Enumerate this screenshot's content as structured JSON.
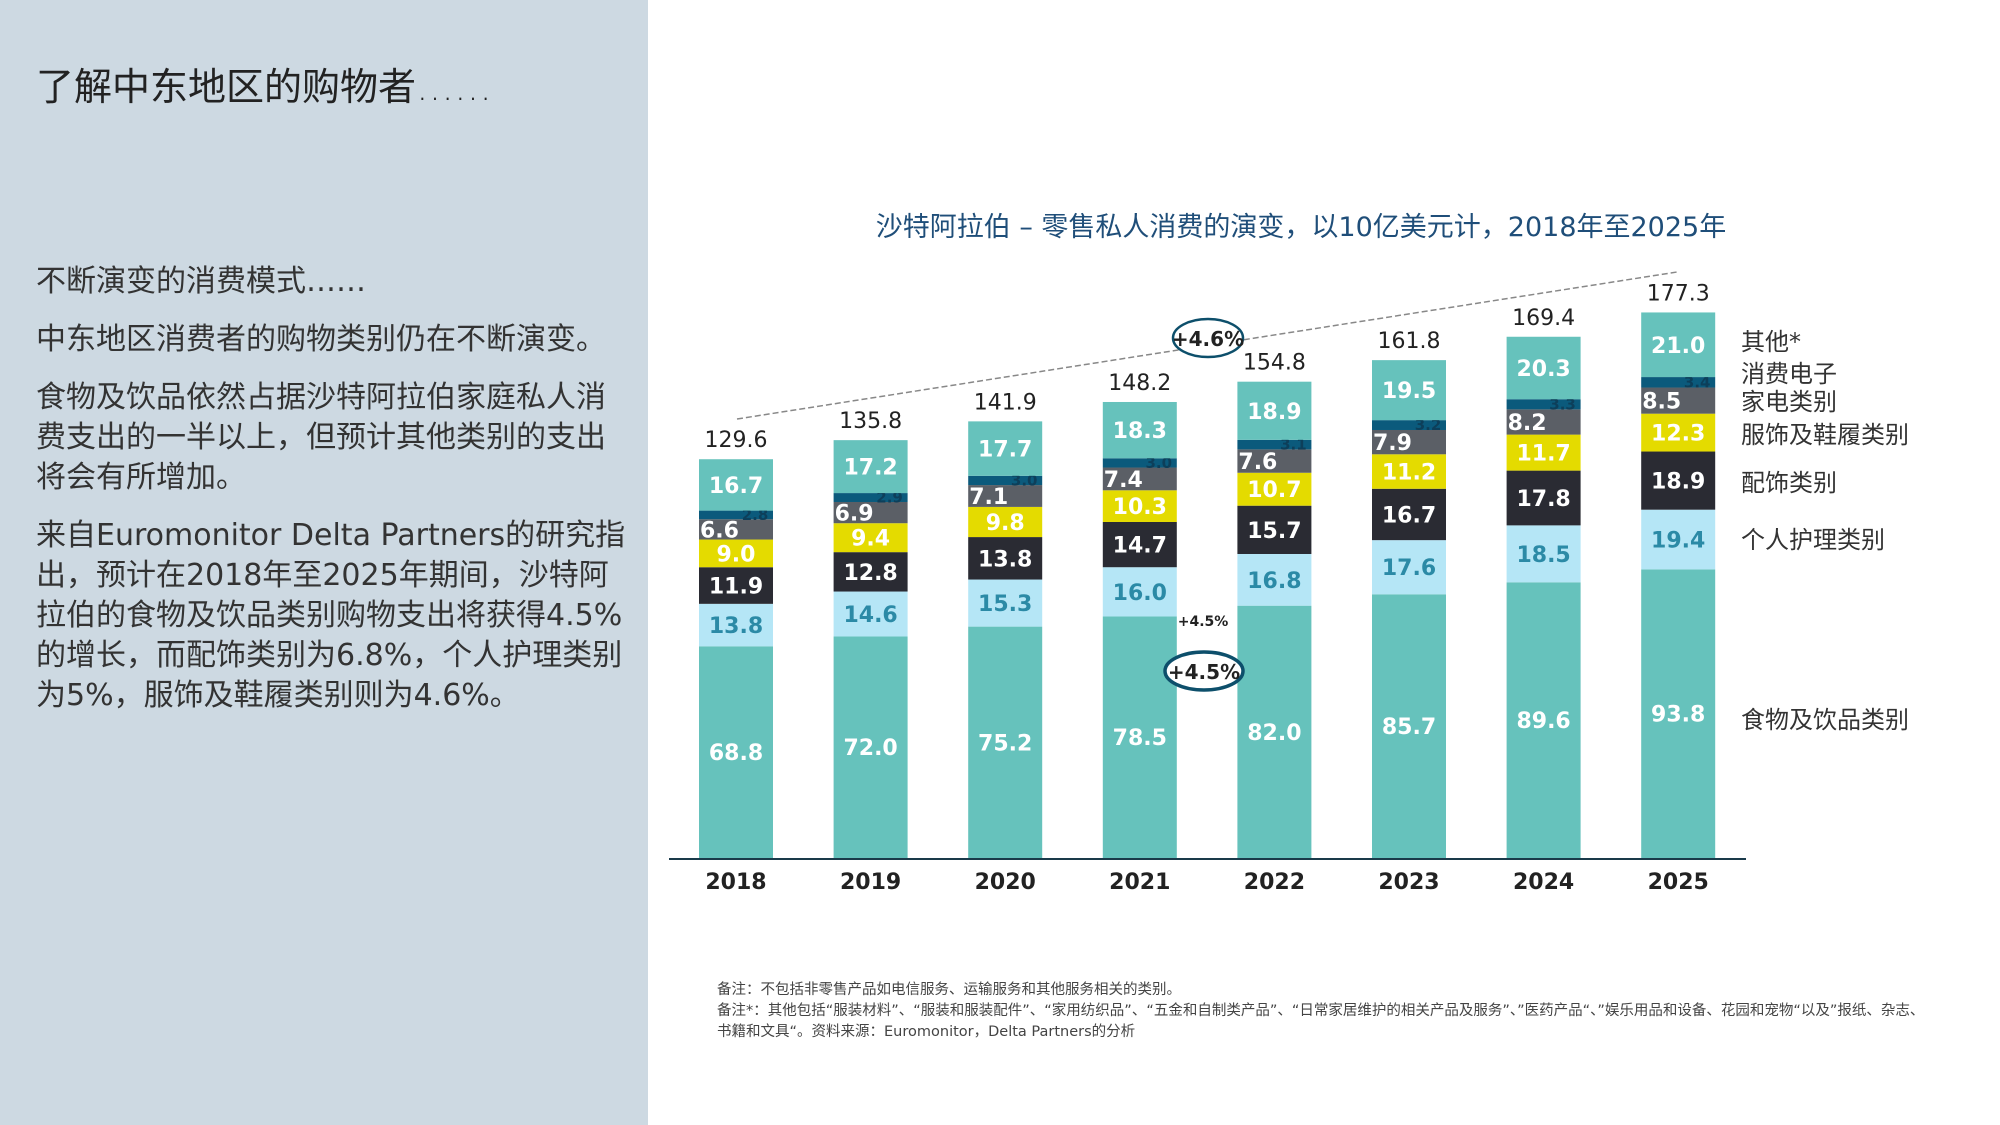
{
  "left_panel": {
    "title": "了解中东地区的购物者……",
    "paragraphs": [
      "不断演变的消费模式……",
      "中东地区消费者的购物类别仍在不断演变。",
      "食物及饮品依然占据沙特阿拉伯家庭私人消费支出的一半以上，但预计其他类别的支出将会有所增加。",
      "来自Euromonitor Delta Partners的研究指出，预计在2018年至2025年期间，沙特阿拉伯的食物及饮品类别购物支出将获得4.5%的增长，而配饰类别为6.8%，个人护理类别为5%，服饰及鞋履类别则为4.6%。"
    ]
  },
  "footnotes": [
    "备注：不包括非零售产品如电信服务、运输服务和其他服务相关的类别。",
    "备注*：其他包括“服装材料”、“服装和服装配件”、“家用纺织品”、“五金和自制类产品”、“日常家居维护的相关产品及服务”、”医药产品“、”娱乐用品和设备、花园和宠物“以及”报纸、杂志、书籍和文具“。资料来源：Euromonitor，Delta Partners的分析"
  ],
  "chart_data": {
    "type": "bar",
    "stacked": true,
    "title": "沙特阿拉伯 – 零售私人消费的演变，以10亿美元计，2018年至2025年",
    "categories": [
      "2018",
      "2019",
      "2020",
      "2021",
      "2022",
      "2023",
      "2024",
      "2025"
    ],
    "totals": [
      129.6,
      135.8,
      141.9,
      148.2,
      154.8,
      161.8,
      169.4,
      177.3
    ],
    "series": [
      {
        "name": "食物及饮品类别",
        "color": "#66c2bc",
        "label_color": "#ffffff",
        "values": [
          68.8,
          72.0,
          75.2,
          78.5,
          82.0,
          85.7,
          89.6,
          93.8
        ]
      },
      {
        "name": "个人护理类别",
        "color": "#b5e6f6",
        "label_color": "#2b8aa6",
        "values": [
          13.8,
          14.6,
          15.3,
          16.0,
          16.8,
          17.6,
          18.5,
          19.4
        ]
      },
      {
        "name": "配饰类别",
        "color": "#2a2b33",
        "label_color": "#ffffff",
        "values": [
          11.9,
          12.8,
          13.8,
          14.7,
          15.7,
          16.7,
          17.8,
          18.9
        ]
      },
      {
        "name": "服饰及鞋履类别",
        "color": "#e4db00",
        "label_color": "#ffffff",
        "values": [
          9.0,
          9.4,
          9.8,
          10.3,
          10.7,
          11.2,
          11.7,
          12.3
        ]
      },
      {
        "name": "家电类别",
        "color": "#5b5f66",
        "label_color": "#ffffff",
        "values": [
          6.6,
          6.9,
          7.1,
          7.4,
          7.6,
          7.9,
          8.2,
          8.5
        ]
      },
      {
        "name": "消费电子",
        "color": "#0b5a7c",
        "label_color": "#0d3f5a",
        "values": [
          2.8,
          2.9,
          3.0,
          3.0,
          3.1,
          3.2,
          3.3,
          3.4
        ]
      },
      {
        "name": "其他*",
        "color": "#66c2bc",
        "label_color": "#ffffff",
        "values": [
          16.7,
          17.2,
          17.7,
          18.3,
          18.9,
          19.5,
          20.3,
          21.0
        ]
      }
    ],
    "annotations": {
      "total_cagr": "+4.6%",
      "food_cagr": "+4.5%",
      "food_cagr_small": "+4.5%"
    },
    "legend_placement": "right",
    "grid": false
  }
}
